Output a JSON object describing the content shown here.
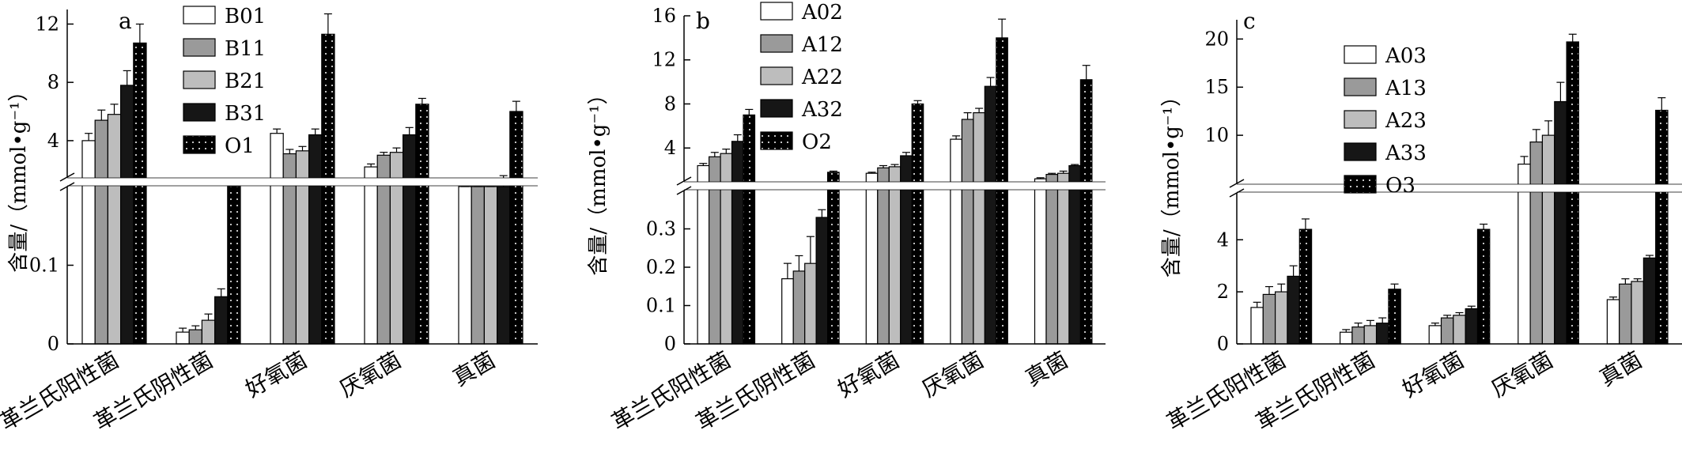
{
  "chart_data": [
    {
      "panel": "a",
      "type": "bar",
      "ylabel": "含量/（mmol•g⁻¹）",
      "categories": [
        "革兰氏阳性菌",
        "革兰氏阴性菌",
        "好氧菌",
        "厌氧菌",
        "真菌"
      ],
      "axis_break": true,
      "lower_ylim": [
        0,
        0.2
      ],
      "upper_ylim": [
        1.5,
        13
      ],
      "lower_ticks": [
        0,
        0.1
      ],
      "upper_ticks": [
        4,
        8,
        12
      ],
      "legend_position": "top-left",
      "series": [
        {
          "name": "B01",
          "values": [
            4.0,
            0.015,
            4.5,
            2.2,
            1.3
          ],
          "errors": [
            0.5,
            0.005,
            0.3,
            0.2,
            0.1
          ]
        },
        {
          "name": "B11",
          "values": [
            5.4,
            0.018,
            3.1,
            3.0,
            1.1
          ],
          "errors": [
            0.7,
            0.005,
            0.3,
            0.2,
            0.1
          ]
        },
        {
          "name": "B21",
          "values": [
            5.8,
            0.03,
            3.3,
            3.2,
            1.2
          ],
          "errors": [
            0.7,
            0.008,
            0.3,
            0.3,
            0.1
          ]
        },
        {
          "name": "B31",
          "values": [
            7.8,
            0.06,
            4.4,
            4.4,
            1.4
          ],
          "errors": [
            1.0,
            0.01,
            0.4,
            0.5,
            0.2
          ]
        },
        {
          "name": "O1",
          "values": [
            10.7,
            1.0,
            11.3,
            6.5,
            6.0
          ],
          "errors": [
            1.3,
            0.1,
            1.4,
            0.4,
            0.7
          ]
        }
      ]
    },
    {
      "panel": "b",
      "type": "bar",
      "ylabel": "含量/（mmol•g⁻¹）",
      "categories": [
        "革兰氏阳性菌",
        "革兰氏阴性菌",
        "好氧菌",
        "厌氧菌",
        "真菌"
      ],
      "axis_break": true,
      "lower_ylim": [
        0,
        0.4
      ],
      "upper_ylim": [
        1.0,
        16
      ],
      "lower_ticks": [
        0,
        0.1,
        0.2,
        0.3
      ],
      "upper_ticks": [
        4,
        8,
        12,
        16
      ],
      "legend_position": "top-right",
      "series": [
        {
          "name": "A02",
          "values": [
            2.4,
            0.17,
            1.7,
            4.8,
            1.2
          ],
          "errors": [
            0.2,
            0.04,
            0.1,
            0.3,
            0.1
          ]
        },
        {
          "name": "A12",
          "values": [
            3.2,
            0.19,
            2.2,
            6.6,
            1.6
          ],
          "errors": [
            0.4,
            0.04,
            0.2,
            0.6,
            0.1
          ]
        },
        {
          "name": "A22",
          "values": [
            3.5,
            0.21,
            2.3,
            7.2,
            1.7
          ],
          "errors": [
            0.4,
            0.07,
            0.2,
            0.4,
            0.2
          ]
        },
        {
          "name": "A32",
          "values": [
            4.6,
            0.33,
            3.3,
            9.6,
            2.4
          ],
          "errors": [
            0.6,
            0.02,
            0.3,
            0.8,
            0.1
          ]
        },
        {
          "name": "O2",
          "values": [
            7.0,
            1.8,
            8.0,
            14.0,
            10.2
          ],
          "errors": [
            0.5,
            0.1,
            0.3,
            1.7,
            1.3
          ]
        }
      ]
    },
    {
      "panel": "c",
      "type": "bar",
      "ylabel": "含量/（mmol•g⁻¹）",
      "categories": [
        "革兰氏阳性菌",
        "革兰氏阴性菌",
        "好氧菌",
        "厌氧菌",
        "真菌"
      ],
      "axis_break": true,
      "lower_ylim": [
        0,
        5.8
      ],
      "upper_ylim": [
        5.0,
        22
      ],
      "lower_ticks": [
        0,
        2,
        4
      ],
      "upper_ticks": [
        10,
        15,
        20
      ],
      "legend_position": "top-left",
      "series": [
        {
          "name": "A03",
          "values": [
            1.4,
            0.45,
            0.7,
            7.0,
            1.7
          ],
          "errors": [
            0.2,
            0.1,
            0.1,
            0.8,
            0.1
          ]
        },
        {
          "name": "A13",
          "values": [
            1.9,
            0.65,
            1.0,
            9.3,
            2.3
          ],
          "errors": [
            0.3,
            0.15,
            0.1,
            1.3,
            0.2
          ]
        },
        {
          "name": "A23",
          "values": [
            2.0,
            0.7,
            1.1,
            10.0,
            2.4
          ],
          "errors": [
            0.3,
            0.2,
            0.1,
            1.5,
            0.1
          ]
        },
        {
          "name": "A33",
          "values": [
            2.6,
            0.8,
            1.35,
            13.5,
            3.3
          ],
          "errors": [
            0.4,
            0.2,
            0.1,
            2.0,
            0.1
          ]
        },
        {
          "name": "O3",
          "values": [
            4.4,
            2.1,
            4.4,
            19.7,
            12.6
          ],
          "errors": [
            0.4,
            0.2,
            0.2,
            0.8,
            1.3
          ]
        }
      ]
    }
  ],
  "series_colors": [
    "#ffffff",
    "#9a9a9a",
    "#bdbdbd",
    "#161616",
    "#000000"
  ],
  "series_patterns": [
    "plain",
    "plain",
    "plain",
    "plain",
    "dotted"
  ]
}
